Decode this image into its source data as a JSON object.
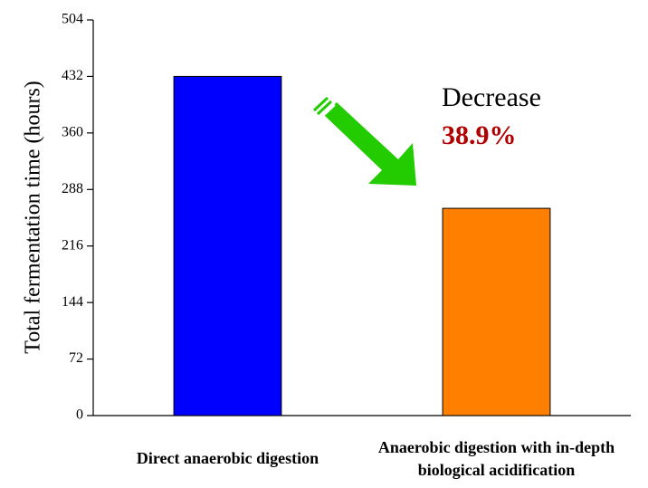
{
  "chart_data": {
    "type": "bar",
    "categories": [
      "Direct anaerobic digestion",
      "Anaerobic digestion with in-depth biological acidification"
    ],
    "values": [
      432,
      264
    ],
    "colors": [
      "#0000ff",
      "#ff8000"
    ],
    "y_label": "Total fermentation time (hours)",
    "ylim": [
      0,
      504
    ],
    "yticks": [
      0,
      72,
      144,
      216,
      288,
      360,
      432,
      504
    ],
    "annotations": [
      "Decrease",
      "38.9%"
    ]
  }
}
